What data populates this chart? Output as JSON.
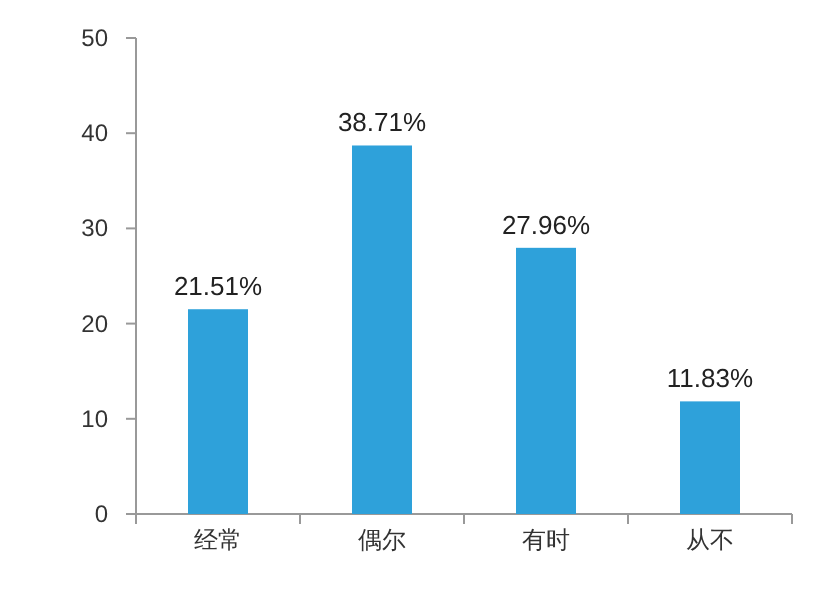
{
  "chart_data": {
    "type": "bar",
    "categories": [
      "经常",
      "偶尔",
      "有时",
      "从不"
    ],
    "values": [
      21.51,
      38.71,
      27.96,
      11.83
    ],
    "value_labels": [
      "21.51%",
      "38.71%",
      "27.96%",
      "11.83%"
    ],
    "color": "#2ea1da",
    "ylim": [
      0,
      50
    ],
    "yticks": [
      0,
      10,
      20,
      30,
      40,
      50
    ]
  }
}
